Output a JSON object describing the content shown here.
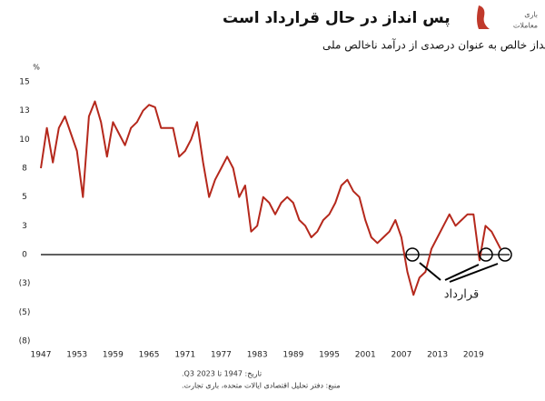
{
  "chart_data": {
    "type": "line",
    "title": "پس انداز در حال قرارداد است",
    "subtitle": "پس انداز خالص به عنوان درصدی از درآمد ناخالص ملی",
    "y_unit": "%",
    "annotation": "قرارداد",
    "notes": [
      "تاریخ: 1947 تا 2023 Q3.",
      "منبع: دفتر تحلیل اقتصادی ایالات متحده، باری تجارت."
    ],
    "logo": [
      "باری",
      "معاملات"
    ],
    "xlim": [
      1947,
      2025
    ],
    "xticks": [
      1947,
      1953,
      1959,
      1965,
      1971,
      1977,
      1983,
      1989,
      1995,
      2001,
      2007,
      2013,
      2019
    ],
    "ylim": [
      -7.5,
      15
    ],
    "yticks": [
      15,
      {
        "value": 12.5,
        "label": "13"
      },
      10,
      {
        "value": 7.5,
        "label": "8"
      },
      5,
      {
        "value": 2.5,
        "label": "3"
      },
      0,
      {
        "value": -2.5,
        "label": "(3)"
      },
      {
        "value": -5,
        "label": "(5)"
      },
      {
        "value": -7.5,
        "label": "(8)"
      }
    ],
    "series": [
      {
        "name": "پس انداز خالص",
        "color": "#b5281c",
        "x": [
          1947,
          1948,
          1949,
          1950,
          1951,
          1952,
          1953,
          1954,
          1955,
          1956,
          1957,
          1958,
          1959,
          1960,
          1961,
          1962,
          1963,
          1964,
          1965,
          1966,
          1967,
          1968,
          1969,
          1970,
          1971,
          1972,
          1973,
          1974,
          1975,
          1976,
          1977,
          1978,
          1979,
          1980,
          1981,
          1982,
          1983,
          1984,
          1985,
          1986,
          1987,
          1988,
          1989,
          1990,
          1991,
          1992,
          1993,
          1994,
          1995,
          1996,
          1997,
          1998,
          1999,
          2000,
          2001,
          2002,
          2003,
          2004,
          2005,
          2006,
          2007,
          2008,
          2009,
          2010,
          2011,
          2012,
          2013,
          2014,
          2015,
          2016,
          2017,
          2018,
          2019,
          2020,
          2021,
          2022,
          2023.5
        ],
        "values": [
          7.5,
          11,
          8,
          11,
          12,
          10.5,
          9,
          5,
          12,
          13.3,
          11.5,
          8.5,
          11.5,
          10.5,
          9.5,
          11,
          11.5,
          12.5,
          13,
          12.8,
          11,
          11,
          11,
          8.5,
          9,
          10,
          11.5,
          8,
          5,
          6.5,
          7.5,
          8.5,
          7.5,
          5,
          6,
          2,
          2.5,
          5,
          4.5,
          3.5,
          4.5,
          5,
          4.5,
          3,
          2.5,
          1.5,
          2,
          3,
          3.5,
          4.5,
          6,
          6.5,
          5.5,
          5,
          3,
          1.5,
          1,
          1.5,
          2,
          3,
          1.5,
          -1.5,
          -3.5,
          -2,
          -1.5,
          0.5,
          1.5,
          2.5,
          3.5,
          2.5,
          3,
          3.5,
          3.5,
          -0.5,
          2.5,
          2,
          0.5
        ]
      }
    ]
  }
}
